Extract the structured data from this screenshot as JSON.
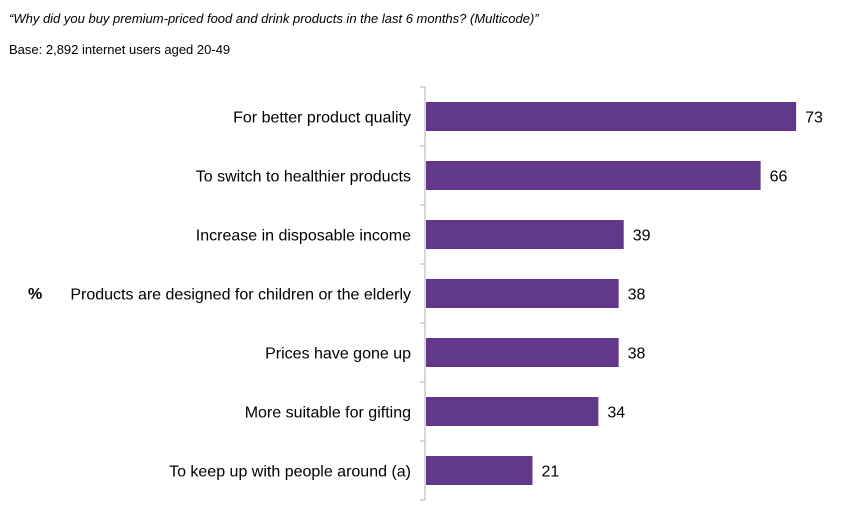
{
  "header": {
    "question": "“Why did you buy premium-priced food and drink products in the last 6 months? (Multicode)”",
    "base": "Base: 2,892 internet users aged 20-49",
    "unit_label": "%"
  },
  "colors": {
    "bar": "#62388a",
    "axis": "#b0b0b0"
  },
  "chart_data": {
    "type": "bar",
    "orientation": "horizontal",
    "categories": [
      "For better product quality",
      "To switch to healthier products",
      "Increase in disposable income",
      "Products are designed for children or the elderly",
      "Prices have gone up",
      "More suitable for gifting",
      "To keep up with people around (a)"
    ],
    "values": [
      73,
      66,
      39,
      38,
      38,
      34,
      21
    ],
    "title": "",
    "xlabel": "",
    "ylabel": "%",
    "xlim": [
      0,
      73
    ]
  }
}
